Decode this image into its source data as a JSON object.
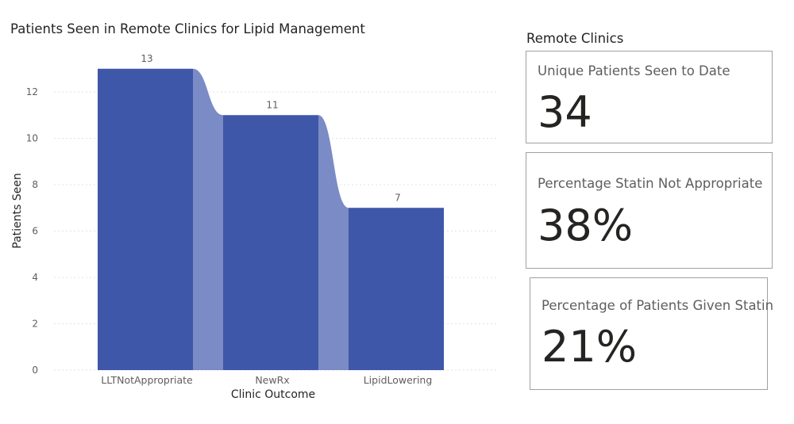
{
  "chart_data": {
    "type": "bar",
    "title": "Patients Seen in Remote Clinics for Lipid Management",
    "xlabel": "Clinic Outcome",
    "ylabel": "Patients Seen",
    "categories": [
      "LLTNotAppropriate",
      "NewRx",
      "LipidLowering"
    ],
    "values": [
      13,
      11,
      7
    ],
    "data_labels": [
      "13",
      "11",
      "7"
    ],
    "yticks": [
      "0",
      "2",
      "4",
      "6",
      "8",
      "10",
      "12"
    ],
    "ylim": [
      0,
      13.9
    ],
    "grid": true,
    "colors": {
      "bar": "#3f57a9",
      "ribbon": "#7b8bc5",
      "gridline": "#e1e1e1",
      "text": "#605e5c"
    }
  },
  "panel": {
    "title": "Remote Clinics",
    "cards": [
      {
        "label": "Unique Patients Seen to Date",
        "value": "34"
      },
      {
        "label": "Percentage Statin Not Appropriate",
        "value": "38%"
      },
      {
        "label": "Percentage of Patients Given Statin",
        "value": "21%"
      }
    ]
  }
}
